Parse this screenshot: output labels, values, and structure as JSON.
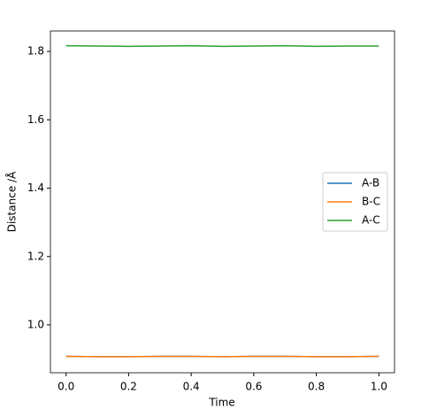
{
  "chart_data": {
    "type": "line",
    "x_label": "Time",
    "y_label": "Distance /Å",
    "x": [
      0.0,
      0.1,
      0.2,
      0.3,
      0.4,
      0.5,
      0.6,
      0.7,
      0.8,
      0.9,
      1.0
    ],
    "series": [
      {
        "name": "A-B",
        "color": "#1f77b4",
        "values": [
          0.908,
          0.907,
          0.907,
          0.908,
          0.908,
          0.907,
          0.908,
          0.908,
          0.907,
          0.907,
          0.908
        ]
      },
      {
        "name": "B-C",
        "color": "#ff7f0e",
        "values": [
          0.908,
          0.907,
          0.907,
          0.908,
          0.908,
          0.907,
          0.908,
          0.908,
          0.907,
          0.907,
          0.908
        ]
      },
      {
        "name": "A-C",
        "color": "#2ca02c",
        "values": [
          1.817,
          1.816,
          1.815,
          1.816,
          1.817,
          1.815,
          1.816,
          1.817,
          1.815,
          1.816,
          1.816
        ]
      }
    ],
    "xlim": [
      -0.05,
      1.05
    ],
    "ylim": [
      0.86,
      1.86
    ],
    "xticks": [
      {
        "value": 0.0,
        "label": "0.0"
      },
      0.2,
      0.4,
      0.6,
      0.8,
      {
        "value": 1.0,
        "label": "1.0"
      }
    ],
    "yticks": [
      {
        "value": 1.0,
        "label": "1.0"
      },
      1.2,
      1.4,
      1.6,
      1.8
    ],
    "legend": "right"
  }
}
